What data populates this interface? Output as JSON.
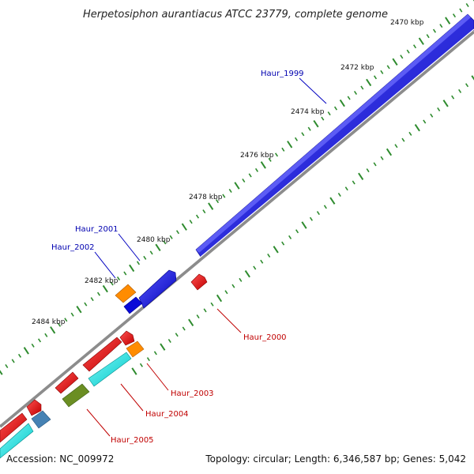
{
  "header": {
    "title": "Herpetosiphon aurantiacus ATCC 23779, complete genome"
  },
  "footer": {
    "accession": "Accession: NC_009972",
    "summary": "Topology: circular; Length: 6,346,587 bp; Genes: 5,042"
  },
  "colors": {
    "backbone": "#8c8c8c",
    "forward_cds": "#0000e0",
    "reverse_cds": "#e00000",
    "orange_feature": "#ff8c00",
    "cyan_feature": "#00e5e5",
    "olive_feature": "#6b8e23",
    "steel_feature": "#4682b4",
    "tick_mark": "#2e8b2e",
    "forward_label": "#0000b0",
    "reverse_label": "#c00000"
  },
  "scale": {
    "unit": "kbp",
    "tick_labels": [
      "2470 kbp",
      "2472 kbp",
      "2474 kbp",
      "2476 kbp",
      "2478 kbp",
      "2480 kbp",
      "2482 kbp",
      "2484 kbp"
    ]
  },
  "genes": {
    "forward": [
      {
        "name": "Haur_1999",
        "color": "forward_cds"
      },
      {
        "name": "Haur_2001",
        "color": "forward_cds"
      },
      {
        "name": "Haur_2002",
        "color": "orange_feature"
      }
    ],
    "reverse": [
      {
        "name": "Haur_2000",
        "color": "reverse_cds"
      },
      {
        "name": "Haur_2003",
        "color": "orange_feature"
      },
      {
        "name": "Haur_2004",
        "color": "olive_feature"
      },
      {
        "name": "Haur_2005",
        "color": "cyan_feature"
      }
    ]
  }
}
